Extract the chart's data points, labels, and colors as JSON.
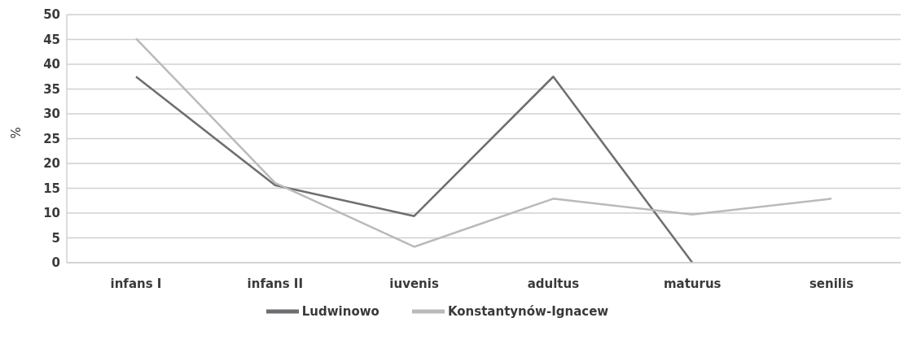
{
  "chart_data": {
    "type": "line",
    "ylabel": "%",
    "categories": [
      "infans I",
      "infans II",
      "iuvenis",
      "adultus",
      "maturus",
      "senilis"
    ],
    "series": [
      {
        "name": "Ludwinowo",
        "color": "#6d6e71",
        "values": [
          37.5,
          15.6,
          9.4,
          37.5,
          0,
          null
        ]
      },
      {
        "name": "Konstantynów-Ignacew",
        "color": "#b8babc",
        "values": [
          45.2,
          16.1,
          3.2,
          12.9,
          9.7,
          12.9
        ]
      }
    ],
    "ylim": [
      0,
      50
    ],
    "yticks": [
      0,
      5,
      10,
      15,
      20,
      25,
      30,
      35,
      40,
      45,
      50
    ],
    "grid": "y",
    "legend": "bottom",
    "marker": "none",
    "line_style": "solid"
  }
}
